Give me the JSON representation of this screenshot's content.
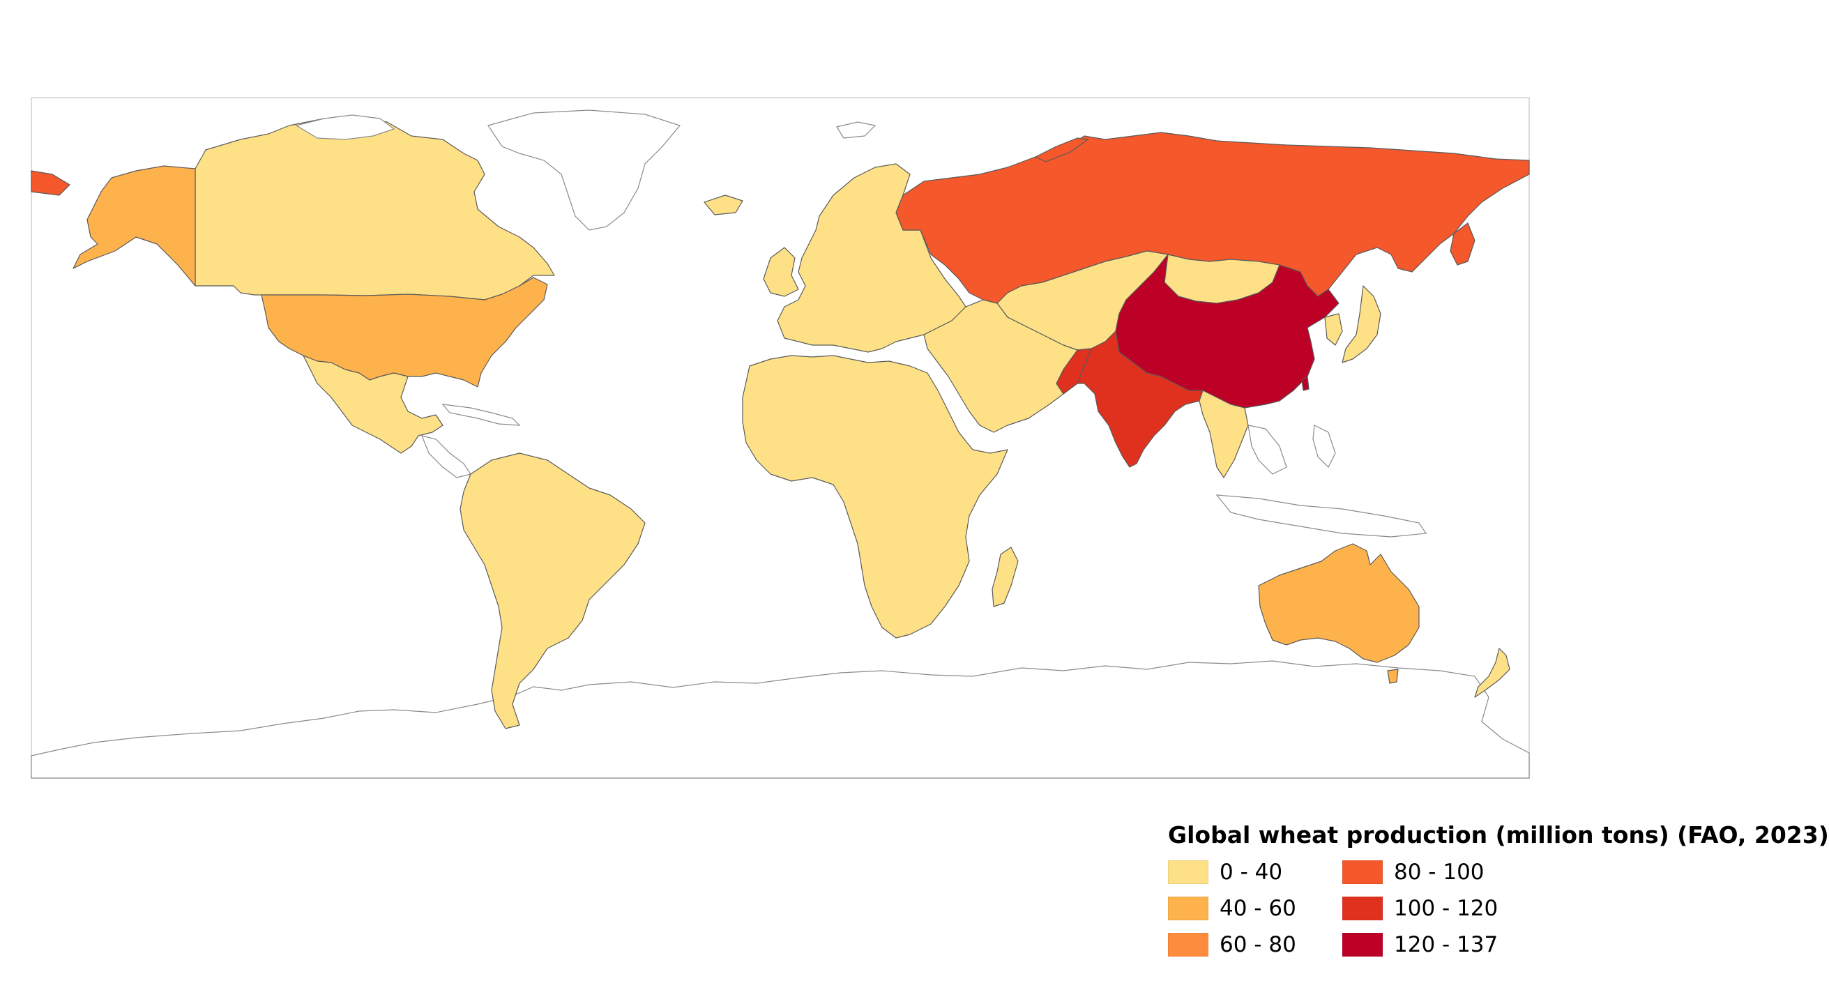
{
  "legend": {
    "title": "Global wheat production (million tons) (FAO, 2023)",
    "classes": [
      {
        "label": "0 - 40",
        "color": "#fee187"
      },
      {
        "label": "40 - 60",
        "color": "#feb24c"
      },
      {
        "label": "60 - 80",
        "color": "#fd8d3c"
      },
      {
        "label": "80 - 100",
        "color": "#f4582b"
      },
      {
        "label": "100 - 120",
        "color": "#e0301e"
      },
      {
        "label": "120 - 137",
        "color": "#bd0026"
      }
    ]
  },
  "regions": [
    {
      "name": "Canada",
      "class": "0 - 40"
    },
    {
      "name": "Alaska (USA)",
      "class": "40 - 60"
    },
    {
      "name": "United States",
      "class": "40 - 60"
    },
    {
      "name": "Mexico",
      "class": "0 - 40"
    },
    {
      "name": "South America",
      "class": "0 - 40"
    },
    {
      "name": "Europe",
      "class": "0 - 40"
    },
    {
      "name": "Africa",
      "class": "0 - 40"
    },
    {
      "name": "Middle East",
      "class": "0 - 40"
    },
    {
      "name": "Central Asia",
      "class": "0 - 40"
    },
    {
      "name": "Russia",
      "class": "80 - 100"
    },
    {
      "name": "China",
      "class": "120 - 137"
    },
    {
      "name": "India",
      "class": "100 - 120"
    },
    {
      "name": "Australia",
      "class": "40 - 60"
    },
    {
      "name": "New Zealand",
      "class": "0 - 40"
    },
    {
      "name": "Southeast Asia",
      "class": "0 - 40"
    },
    {
      "name": "Japan",
      "class": "0 - 40"
    },
    {
      "name": "Madagascar",
      "class": "0 - 40"
    }
  ]
}
